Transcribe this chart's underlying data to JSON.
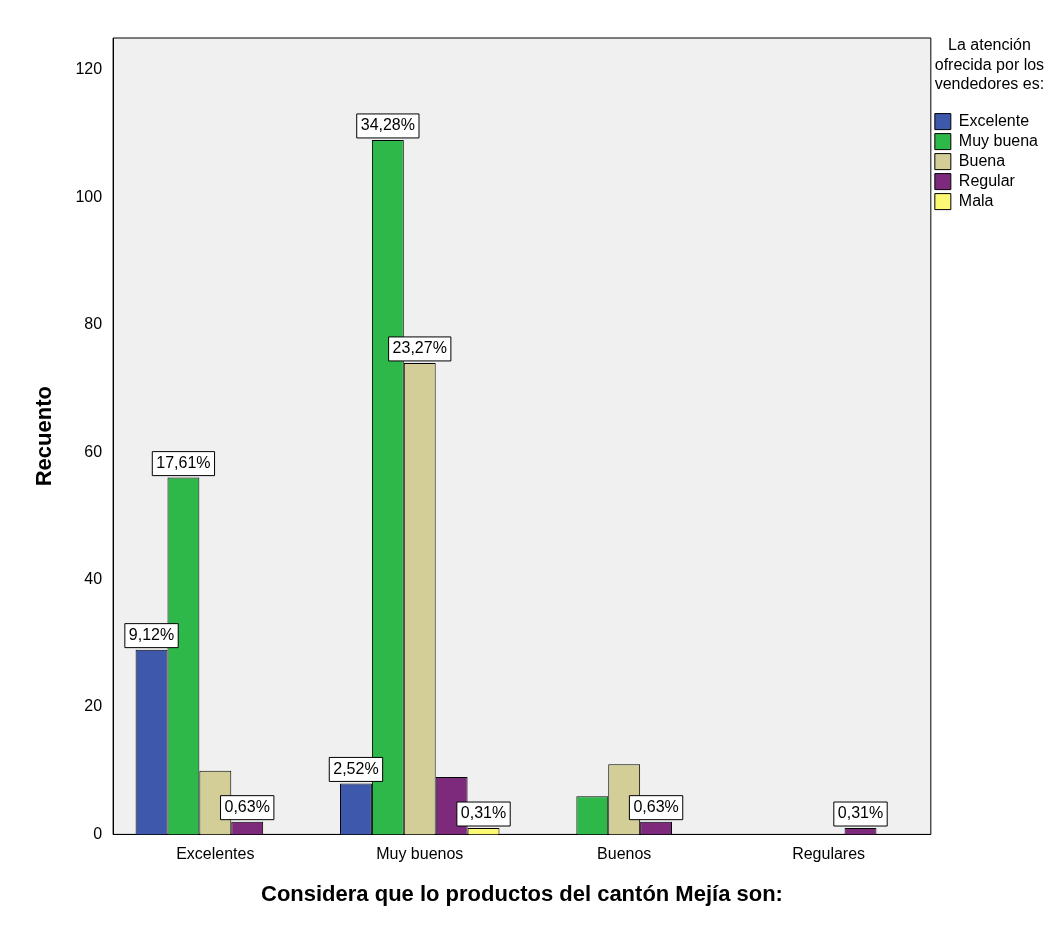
{
  "chart_data": {
    "type": "bar",
    "xlabel": "Considera que lo productos del cantón Mejía son:",
    "ylabel": "Recuento",
    "legend_title": "La atención ofrecida por los vendedores es:",
    "categories": [
      "Excelentes",
      "Muy buenos",
      "Buenos",
      "Regulares"
    ],
    "series": [
      {
        "name": "Excelente",
        "color": "#3e58ac",
        "values": [
          29,
          8,
          null,
          null
        ]
      },
      {
        "name": "Muy buena",
        "color": "#2fb84a",
        "values": [
          56,
          109,
          6,
          null
        ]
      },
      {
        "name": "Buena",
        "color": "#d3ce97",
        "values": [
          10,
          74,
          11,
          null
        ]
      },
      {
        "name": "Regular",
        "color": "#7d2a7d",
        "values": [
          2,
          9,
          2,
          1
        ]
      },
      {
        "name": "Mala",
        "color": "#fbf873",
        "values": [
          null,
          1,
          null,
          null
        ]
      }
    ],
    "annotations": [
      "9,12%",
      "17,61%",
      "0,63%",
      "2,52%",
      "34,28%",
      "23,27%",
      "0,31%",
      "0,63%",
      "0,31%"
    ],
    "ylim": [
      0,
      125
    ],
    "yticks": [
      0,
      20,
      40,
      60,
      80,
      100,
      120
    ],
    "grid": false,
    "legend": "top right"
  }
}
